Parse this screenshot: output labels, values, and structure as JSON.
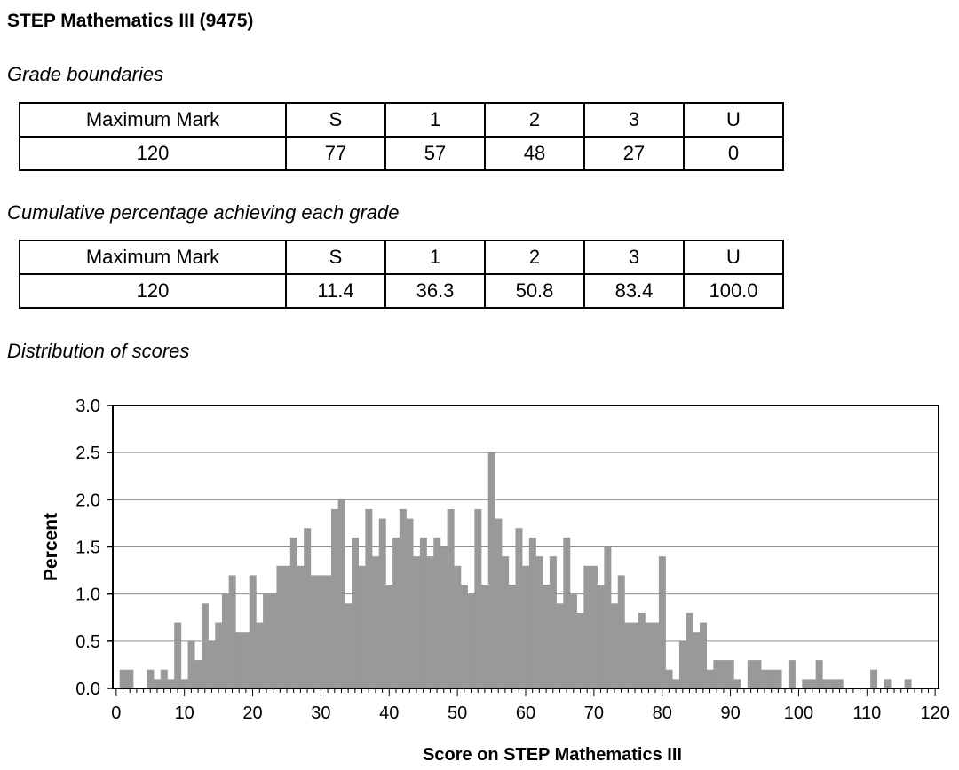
{
  "page": {
    "title": "STEP Mathematics III (9475)"
  },
  "grade_boundaries": {
    "heading": "Grade boundaries",
    "headers": [
      "Maximum Mark",
      "S",
      "1",
      "2",
      "3",
      "U"
    ],
    "values": [
      "120",
      "77",
      "57",
      "48",
      "27",
      "0"
    ]
  },
  "cumulative_percentages": {
    "heading": "Cumulative percentage achieving each grade",
    "headers": [
      "Maximum Mark",
      "S",
      "1",
      "2",
      "3",
      "U"
    ],
    "values": [
      "120",
      "11.4",
      "36.3",
      "50.8",
      "83.4",
      "100.0"
    ]
  },
  "distribution": {
    "heading": "Distribution of scores"
  },
  "chart_data": {
    "type": "bar",
    "xlabel": "Score on STEP Mathematics III",
    "ylabel": "Percent",
    "xlim": [
      0,
      120
    ],
    "ylim": [
      0,
      3.0
    ],
    "x_ticks": [
      0,
      10,
      20,
      30,
      40,
      50,
      60,
      70,
      80,
      90,
      100,
      110,
      120
    ],
    "y_ticks": [
      "0.0",
      "0.5",
      "1.0",
      "1.5",
      "2.0",
      "2.5",
      "3.0"
    ],
    "grid": "horizontal",
    "bar_color": "#999999",
    "x": [
      0,
      1,
      2,
      3,
      4,
      5,
      6,
      7,
      8,
      9,
      10,
      11,
      12,
      13,
      14,
      15,
      16,
      17,
      18,
      19,
      20,
      21,
      22,
      23,
      24,
      25,
      26,
      27,
      28,
      29,
      30,
      31,
      32,
      33,
      34,
      35,
      36,
      37,
      38,
      39,
      40,
      41,
      42,
      43,
      44,
      45,
      46,
      47,
      48,
      49,
      50,
      51,
      52,
      53,
      54,
      55,
      56,
      57,
      58,
      59,
      60,
      61,
      62,
      63,
      64,
      65,
      66,
      67,
      68,
      69,
      70,
      71,
      72,
      73,
      74,
      75,
      76,
      77,
      78,
      79,
      80,
      81,
      82,
      83,
      84,
      85,
      86,
      87,
      88,
      89,
      90,
      91,
      92,
      93,
      94,
      95,
      96,
      97,
      98,
      99,
      100,
      101,
      102,
      103,
      104,
      105,
      106,
      107,
      108,
      109,
      110,
      111,
      112,
      113,
      114,
      115,
      116,
      117,
      118,
      119,
      120
    ],
    "values": [
      0.0,
      0.2,
      0.2,
      0.0,
      0.0,
      0.2,
      0.1,
      0.2,
      0.1,
      0.7,
      0.1,
      0.5,
      0.3,
      0.9,
      0.5,
      0.7,
      1.0,
      1.2,
      0.6,
      0.6,
      1.2,
      0.7,
      1.0,
      1.0,
      1.3,
      1.3,
      1.6,
      1.3,
      1.7,
      1.2,
      1.2,
      1.2,
      1.9,
      2.0,
      0.9,
      1.6,
      1.3,
      1.9,
      1.4,
      1.8,
      1.1,
      1.6,
      1.9,
      1.8,
      1.4,
      1.6,
      1.4,
      1.6,
      1.5,
      1.9,
      1.3,
      1.1,
      1.0,
      1.9,
      1.1,
      2.5,
      1.8,
      1.4,
      1.1,
      1.7,
      1.3,
      1.6,
      1.4,
      1.1,
      1.4,
      0.9,
      1.6,
      1.0,
      0.8,
      1.3,
      1.3,
      1.1,
      1.5,
      0.9,
      1.2,
      0.7,
      0.7,
      0.8,
      0.7,
      0.7,
      1.4,
      0.2,
      0.1,
      0.5,
      0.8,
      0.6,
      0.7,
      0.2,
      0.3,
      0.3,
      0.3,
      0.1,
      0.0,
      0.3,
      0.3,
      0.2,
      0.2,
      0.2,
      0.0,
      0.3,
      0.0,
      0.1,
      0.1,
      0.3,
      0.1,
      0.1,
      0.1,
      0.0,
      0.0,
      0.0,
      0.0,
      0.2,
      0.0,
      0.1,
      0.0,
      0.0,
      0.1,
      0.0,
      0.0,
      0.0,
      0.0
    ]
  }
}
